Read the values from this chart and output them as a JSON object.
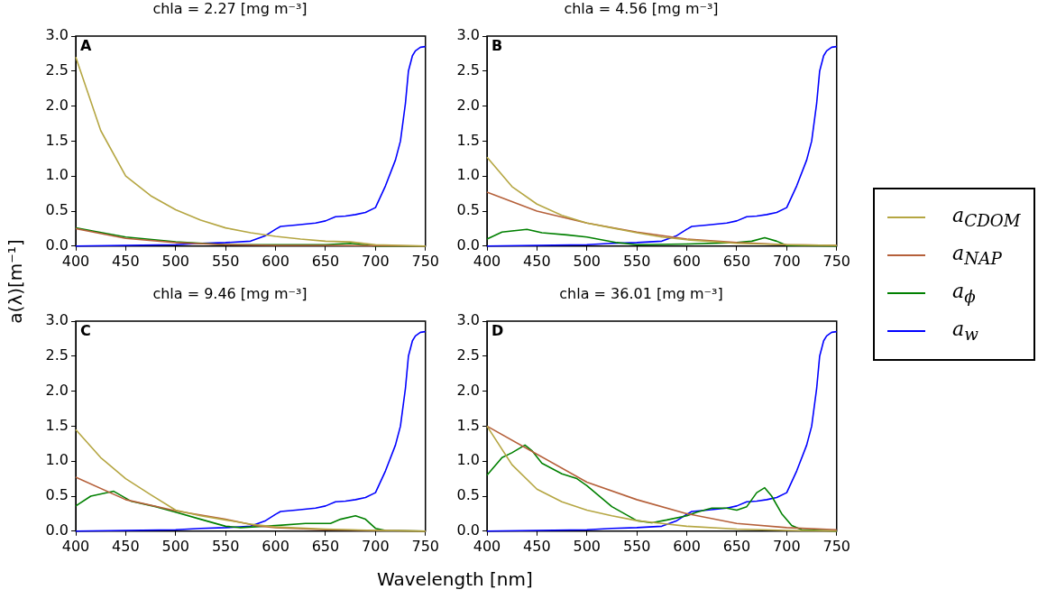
{
  "chart_data": [
    {
      "type": "line",
      "title": "chla = 2.27 [mg m⁻³]",
      "ylabel": "a(λ)[m⁻¹]",
      "annotations": [
        "A"
      ],
      "legend": "right",
      "grid": false,
      "marker": "none",
      "line_style": "solid",
      "xlim": [
        400,
        750
      ],
      "xticks": [
        400,
        450,
        500,
        550,
        600,
        650,
        700,
        750
      ],
      "ylim": [
        0,
        3
      ],
      "yticks": [
        {
          "value": 0,
          "label": "0.0"
        },
        {
          "value": 0.5,
          "label": "0.5"
        },
        {
          "value": 1,
          "label": "1.0"
        },
        {
          "value": 1.5,
          "label": "1.5"
        },
        {
          "value": 2,
          "label": "2.0"
        },
        {
          "value": 2.5,
          "label": "2.5"
        },
        {
          "value": 3,
          "label": "3.0"
        }
      ],
      "series": [
        {
          "name": "a$_{CDOM}$",
          "color": "#b5a642",
          "x": [
            400,
            425,
            450,
            475,
            500,
            525,
            550,
            575,
            600,
            625,
            650,
            675,
            700,
            725,
            750
          ],
          "values": [
            2.7,
            1.65,
            1.0,
            0.72,
            0.52,
            0.37,
            0.26,
            0.19,
            0.14,
            0.1,
            0.07,
            0.06,
            0.02,
            0.01,
            0.0
          ]
        },
        {
          "name": "a$_{NAP}$",
          "color": "#b5603a",
          "x": [
            400,
            450,
            500,
            550,
            600,
            650,
            750
          ],
          "values": [
            0.25,
            0.11,
            0.05,
            0.02,
            0.01,
            0.01,
            0.0
          ]
        },
        {
          "name": "a$_{ϕ}$",
          "color": "#008000",
          "x": [
            400,
            450,
            500,
            550,
            600,
            650,
            675,
            700,
            750
          ],
          "values": [
            0.26,
            0.13,
            0.06,
            0.02,
            0.02,
            0.02,
            0.04,
            0.0,
            0.0
          ]
        },
        {
          "name": "a$_{w}$",
          "color": "#0000ff",
          "x": [
            400,
            450,
            500,
            525,
            550,
            575,
            590,
            600,
            605,
            620,
            640,
            650,
            660,
            670,
            680,
            690,
            700,
            710,
            720,
            725,
            730,
            733,
            737,
            740,
            745,
            750
          ],
          "values": [
            0,
            0.01,
            0.02,
            0.04,
            0.05,
            0.07,
            0.15,
            0.24,
            0.28,
            0.3,
            0.33,
            0.36,
            0.42,
            0.43,
            0.45,
            0.48,
            0.55,
            0.86,
            1.23,
            1.5,
            2.04,
            2.5,
            2.72,
            2.79,
            2.84,
            2.85
          ]
        }
      ]
    },
    {
      "type": "line",
      "title": "chla = 4.56 [mg m⁻³]",
      "annotations": [
        "B"
      ],
      "grid": false,
      "marker": "none",
      "line_style": "solid",
      "xlim": [
        400,
        750
      ],
      "xticks": [
        400,
        450,
        500,
        550,
        600,
        650,
        700,
        750
      ],
      "ylim": [
        0,
        3
      ],
      "yticks": [
        {
          "value": 0,
          "label": "0.0"
        },
        {
          "value": 0.5,
          "label": "0.5"
        },
        {
          "value": 1,
          "label": "1.0"
        },
        {
          "value": 1.5,
          "label": "1.5"
        },
        {
          "value": 2,
          "label": "2.0"
        },
        {
          "value": 2.5,
          "label": "2.5"
        },
        {
          "value": 3,
          "label": "3.0"
        }
      ],
      "series": [
        {
          "color": "#b5a642",
          "x": [
            400,
            425,
            450,
            475,
            500,
            525,
            550,
            575,
            600,
            650,
            700,
            750
          ],
          "values": [
            1.27,
            0.85,
            0.6,
            0.44,
            0.33,
            0.26,
            0.19,
            0.13,
            0.09,
            0.04,
            0.02,
            0.01
          ]
        },
        {
          "color": "#b5603a",
          "x": [
            400,
            450,
            500,
            550,
            600,
            650,
            700,
            750
          ],
          "values": [
            0.77,
            0.5,
            0.33,
            0.2,
            0.1,
            0.05,
            0.02,
            0.01
          ]
        },
        {
          "color": "#008000",
          "x": [
            400,
            415,
            440,
            455,
            480,
            500,
            530,
            550,
            600,
            650,
            665,
            678,
            690,
            700,
            750
          ],
          "values": [
            0.1,
            0.2,
            0.24,
            0.19,
            0.16,
            0.13,
            0.05,
            0.02,
            0.03,
            0.05,
            0.07,
            0.12,
            0.07,
            0.01,
            0.0
          ]
        },
        {
          "color": "#0000ff",
          "x": [
            400,
            450,
            500,
            525,
            550,
            575,
            590,
            600,
            605,
            620,
            640,
            650,
            660,
            670,
            680,
            690,
            700,
            710,
            720,
            725,
            730,
            733,
            737,
            740,
            745,
            750
          ],
          "values": [
            0,
            0.01,
            0.02,
            0.04,
            0.05,
            0.07,
            0.15,
            0.24,
            0.28,
            0.3,
            0.33,
            0.36,
            0.42,
            0.43,
            0.45,
            0.48,
            0.55,
            0.86,
            1.23,
            1.5,
            2.04,
            2.5,
            2.72,
            2.79,
            2.84,
            2.85
          ]
        }
      ]
    },
    {
      "type": "line",
      "title": "chla = 9.46 [mg m⁻³]",
      "annotations": [
        "C"
      ],
      "grid": false,
      "marker": "none",
      "line_style": "solid",
      "xlim": [
        400,
        750
      ],
      "xticks": [
        400,
        450,
        500,
        550,
        600,
        650,
        700,
        750
      ],
      "ylim": [
        0,
        3
      ],
      "yticks": [
        {
          "value": 0,
          "label": "0.0"
        },
        {
          "value": 0.5,
          "label": "0.5"
        },
        {
          "value": 1,
          "label": "1.0"
        },
        {
          "value": 1.5,
          "label": "1.5"
        },
        {
          "value": 2,
          "label": "2.0"
        },
        {
          "value": 2.5,
          "label": "2.5"
        },
        {
          "value": 3,
          "label": "3.0"
        }
      ],
      "series": [
        {
          "color": "#b5a642",
          "x": [
            400,
            425,
            450,
            475,
            500,
            525,
            550,
            575,
            600,
            650,
            700,
            750
          ],
          "values": [
            1.45,
            1.05,
            0.75,
            0.52,
            0.3,
            0.22,
            0.16,
            0.1,
            0.06,
            0.03,
            0.01,
            0.0
          ]
        },
        {
          "color": "#b5603a",
          "x": [
            400,
            450,
            500,
            550,
            580,
            600,
            650,
            700,
            750
          ],
          "values": [
            0.77,
            0.45,
            0.29,
            0.17,
            0.08,
            0.05,
            0.02,
            0.01,
            0.0
          ]
        },
        {
          "color": "#008000",
          "x": [
            400,
            415,
            438,
            455,
            480,
            500,
            525,
            550,
            565,
            600,
            630,
            655,
            665,
            680,
            690,
            700,
            710,
            750
          ],
          "values": [
            0.36,
            0.5,
            0.57,
            0.43,
            0.35,
            0.27,
            0.17,
            0.07,
            0.05,
            0.08,
            0.11,
            0.11,
            0.17,
            0.22,
            0.17,
            0.04,
            0.01,
            0.0
          ]
        },
        {
          "color": "#0000ff",
          "x": [
            400,
            450,
            500,
            525,
            550,
            575,
            590,
            600,
            605,
            620,
            640,
            650,
            660,
            670,
            680,
            690,
            700,
            710,
            720,
            725,
            730,
            733,
            737,
            740,
            745,
            750
          ],
          "values": [
            0,
            0.01,
            0.02,
            0.04,
            0.05,
            0.07,
            0.15,
            0.24,
            0.28,
            0.3,
            0.33,
            0.36,
            0.42,
            0.43,
            0.45,
            0.48,
            0.55,
            0.86,
            1.23,
            1.5,
            2.04,
            2.5,
            2.72,
            2.79,
            2.84,
            2.85
          ]
        }
      ]
    },
    {
      "type": "line",
      "title": "chla = 36.01 [mg m⁻³]",
      "xlabel": "Wavelength [nm]",
      "annotations": [
        "D"
      ],
      "grid": false,
      "marker": "none",
      "line_style": "solid",
      "xlim": [
        400,
        750
      ],
      "xticks": [
        400,
        450,
        500,
        550,
        600,
        650,
        700,
        750
      ],
      "ylim": [
        0,
        3
      ],
      "yticks": [
        {
          "value": 0,
          "label": "0.0"
        },
        {
          "value": 0.5,
          "label": "0.5"
        },
        {
          "value": 1,
          "label": "1.0"
        },
        {
          "value": 1.5,
          "label": "1.5"
        },
        {
          "value": 2,
          "label": "2.0"
        },
        {
          "value": 2.5,
          "label": "2.5"
        },
        {
          "value": 3,
          "label": "3.0"
        }
      ],
      "series": [
        {
          "color": "#b5a642",
          "x": [
            400,
            425,
            450,
            475,
            500,
            525,
            550,
            575,
            600,
            650,
            700,
            750
          ],
          "values": [
            1.5,
            0.95,
            0.6,
            0.42,
            0.3,
            0.22,
            0.15,
            0.11,
            0.07,
            0.03,
            0.01,
            0.0
          ]
        },
        {
          "color": "#b5603a",
          "x": [
            400,
            450,
            500,
            550,
            600,
            650,
            700,
            750
          ],
          "values": [
            1.5,
            1.1,
            0.7,
            0.45,
            0.25,
            0.11,
            0.05,
            0.02
          ]
        },
        {
          "color": "#008000",
          "x": [
            400,
            415,
            425,
            438,
            445,
            455,
            475,
            490,
            500,
            525,
            550,
            565,
            580,
            600,
            610,
            625,
            640,
            650,
            660,
            670,
            678,
            685,
            695,
            705,
            715,
            750
          ],
          "values": [
            0.8,
            1.05,
            1.12,
            1.23,
            1.15,
            0.97,
            0.82,
            0.75,
            0.65,
            0.35,
            0.15,
            0.12,
            0.16,
            0.22,
            0.27,
            0.33,
            0.33,
            0.3,
            0.35,
            0.55,
            0.62,
            0.5,
            0.25,
            0.08,
            0.02,
            0.0
          ]
        },
        {
          "color": "#0000ff",
          "x": [
            400,
            450,
            500,
            525,
            550,
            575,
            590,
            600,
            605,
            620,
            640,
            650,
            660,
            670,
            680,
            690,
            700,
            710,
            720,
            725,
            730,
            733,
            737,
            740,
            745,
            750
          ],
          "values": [
            0,
            0.01,
            0.02,
            0.04,
            0.05,
            0.07,
            0.15,
            0.24,
            0.28,
            0.3,
            0.33,
            0.36,
            0.42,
            0.43,
            0.45,
            0.48,
            0.55,
            0.86,
            1.23,
            1.5,
            2.04,
            2.5,
            2.72,
            2.79,
            2.84,
            2.85
          ]
        }
      ]
    }
  ]
}
